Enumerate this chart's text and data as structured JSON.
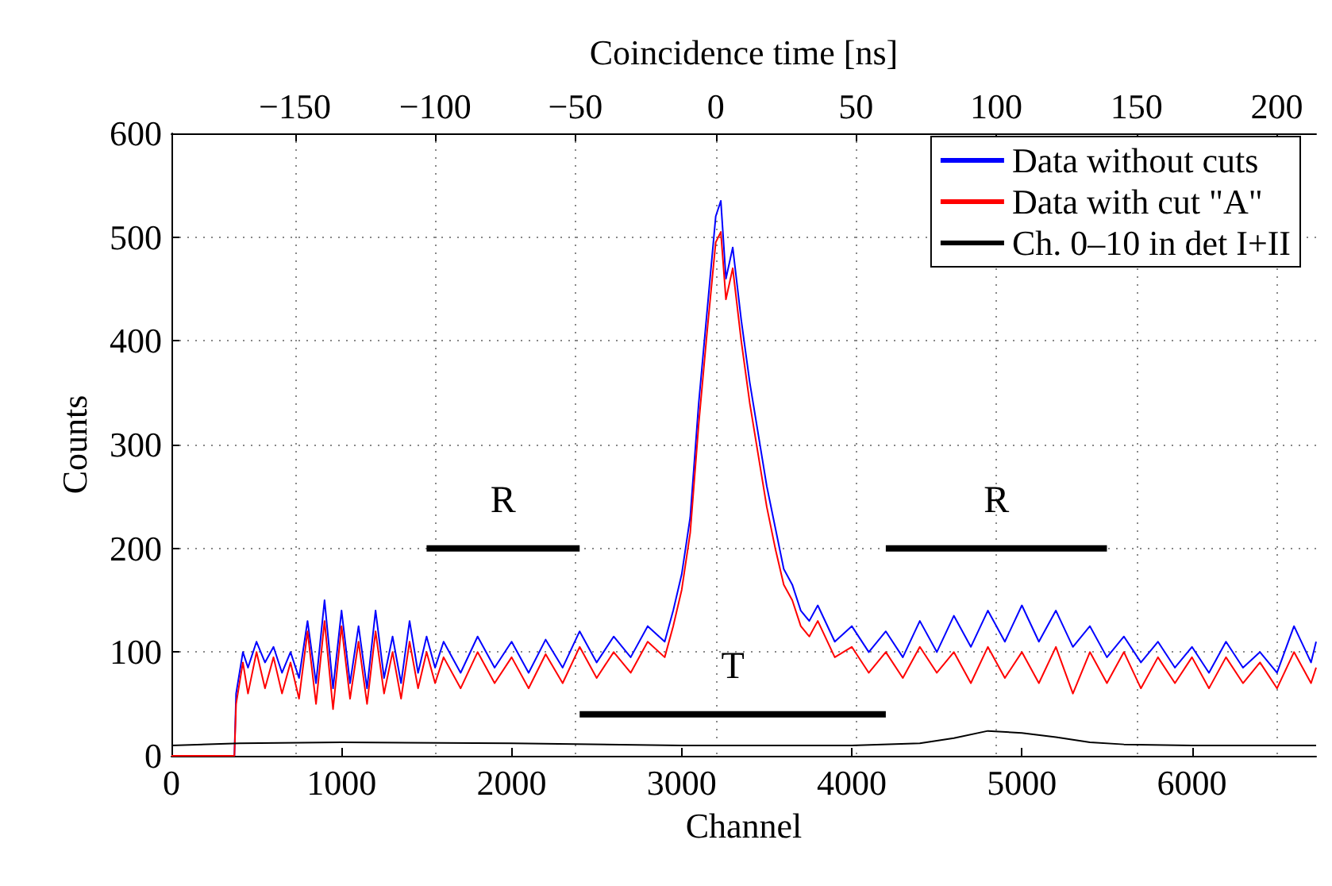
{
  "chart_data": {
    "type": "line",
    "xlabel": "Channel",
    "ylabel": "Counts",
    "x2label": "Coincidence time [ns]",
    "xlim": [
      0,
      6730
    ],
    "xticks": [
      0,
      1000,
      2000,
      3000,
      4000,
      5000,
      6000
    ],
    "x2lim": [
      -194,
      214
    ],
    "x2ticks": [
      {
        "value": -150,
        "label": "−150"
      },
      {
        "value": -100,
        "label": "−100"
      },
      {
        "value": -50,
        "label": "−50"
      },
      0,
      50,
      100,
      150,
      200
    ],
    "ylim": [
      0,
      600
    ],
    "yticks": [
      0,
      100,
      200,
      300,
      400,
      500,
      600
    ],
    "grid": true,
    "legend": "top right",
    "marker": "none",
    "line_style": "solid",
    "series": [
      {
        "name": "Data without cuts",
        "color": "#0000ff",
        "x": [
          0,
          370,
          380,
          420,
          450,
          500,
          550,
          600,
          650,
          700,
          750,
          800,
          850,
          900,
          950,
          1000,
          1050,
          1100,
          1150,
          1200,
          1250,
          1300,
          1350,
          1400,
          1450,
          1500,
          1550,
          1600,
          1700,
          1800,
          1900,
          2000,
          2100,
          2200,
          2300,
          2400,
          2500,
          2600,
          2700,
          2800,
          2900,
          2950,
          3000,
          3050,
          3100,
          3150,
          3200,
          3230,
          3260,
          3300,
          3350,
          3400,
          3450,
          3500,
          3550,
          3600,
          3650,
          3700,
          3750,
          3800,
          3900,
          4000,
          4100,
          4200,
          4300,
          4400,
          4500,
          4600,
          4700,
          4800,
          4900,
          5000,
          5100,
          5200,
          5300,
          5400,
          5500,
          5600,
          5700,
          5800,
          5900,
          6000,
          6100,
          6200,
          6300,
          6400,
          6500,
          6600,
          6700,
          6730
        ],
        "values": [
          0,
          0,
          60,
          100,
          85,
          110,
          90,
          105,
          80,
          100,
          75,
          130,
          70,
          150,
          65,
          140,
          70,
          125,
          65,
          140,
          75,
          115,
          70,
          130,
          80,
          115,
          85,
          110,
          80,
          115,
          85,
          110,
          80,
          112,
          85,
          120,
          90,
          115,
          95,
          125,
          110,
          140,
          175,
          230,
          340,
          430,
          520,
          535,
          460,
          490,
          420,
          360,
          310,
          260,
          220,
          180,
          165,
          140,
          130,
          145,
          110,
          125,
          100,
          120,
          95,
          130,
          100,
          135,
          105,
          140,
          110,
          145,
          110,
          140,
          105,
          125,
          95,
          115,
          90,
          110,
          85,
          105,
          80,
          110,
          85,
          100,
          80,
          125,
          90,
          110
        ]
      },
      {
        "name": "Data with cut \"A\"",
        "color": "#ff0000",
        "x": [
          0,
          370,
          380,
          420,
          450,
          500,
          550,
          600,
          650,
          700,
          750,
          800,
          850,
          900,
          950,
          1000,
          1050,
          1100,
          1150,
          1200,
          1250,
          1300,
          1350,
          1400,
          1450,
          1500,
          1550,
          1600,
          1700,
          1800,
          1900,
          2000,
          2100,
          2200,
          2300,
          2400,
          2500,
          2600,
          2700,
          2800,
          2900,
          2950,
          3000,
          3050,
          3100,
          3150,
          3200,
          3230,
          3260,
          3300,
          3350,
          3400,
          3450,
          3500,
          3550,
          3600,
          3650,
          3700,
          3750,
          3800,
          3900,
          4000,
          4100,
          4200,
          4300,
          4400,
          4500,
          4600,
          4700,
          4800,
          4900,
          5000,
          5100,
          5200,
          5300,
          5400,
          5500,
          5600,
          5700,
          5800,
          5900,
          6000,
          6100,
          6200,
          6300,
          6400,
          6500,
          6600,
          6700,
          6730
        ],
        "values": [
          0,
          0,
          50,
          90,
          60,
          100,
          65,
          95,
          60,
          90,
          55,
          120,
          50,
          130,
          45,
          125,
          55,
          110,
          50,
          120,
          60,
          100,
          55,
          110,
          65,
          100,
          70,
          95,
          65,
          100,
          70,
          95,
          65,
          98,
          70,
          105,
          75,
          100,
          80,
          110,
          95,
          125,
          160,
          215,
          320,
          410,
          495,
          505,
          440,
          470,
          400,
          340,
          290,
          240,
          200,
          165,
          150,
          125,
          115,
          130,
          95,
          105,
          80,
          100,
          75,
          105,
          80,
          100,
          70,
          105,
          75,
          100,
          70,
          105,
          60,
          100,
          70,
          100,
          65,
          95,
          70,
          95,
          65,
          95,
          70,
          90,
          65,
          100,
          70,
          85
        ]
      },
      {
        "name": "Ch. 0–10 in det I+II",
        "color": "#000000",
        "x": [
          0,
          400,
          1000,
          2000,
          3000,
          4000,
          4400,
          4600,
          4800,
          5000,
          5200,
          5400,
          5600,
          6000,
          6730
        ],
        "values": [
          10,
          12,
          13,
          12,
          10,
          10,
          12,
          17,
          24,
          22,
          18,
          13,
          11,
          10,
          10
        ]
      },
      {
        "color": "#000000",
        "x": [
          1500,
          2400
        ],
        "values": [
          200,
          200
        ]
      },
      {
        "color": "#000000",
        "x": [
          4200,
          5500
        ],
        "values": [
          200,
          200
        ]
      },
      {
        "color": "#000000",
        "x": [
          2400,
          4200
        ],
        "values": [
          40,
          40
        ]
      }
    ],
    "annotations": [
      {
        "text": "R",
        "x": 1950,
        "y": 200
      },
      {
        "text": "R",
        "x": 4850,
        "y": 200
      },
      {
        "text": "T",
        "x": 3300,
        "y": 40
      }
    ]
  }
}
